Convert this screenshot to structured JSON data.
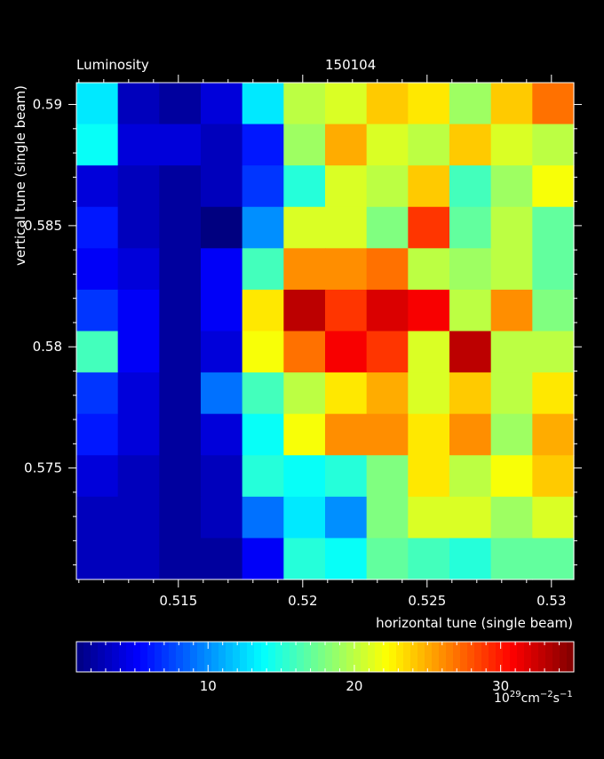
{
  "chart_data": {
    "type": "heatmap",
    "title": "Luminosity",
    "run_number": "150104",
    "xlabel": "horizontal tune (single beam)",
    "ylabel": "vertical tune (single beam)",
    "x_ticks": [
      "0.515",
      "0.52",
      "0.525",
      "0.53"
    ],
    "x_tick_values": [
      0.515,
      0.52,
      0.525,
      0.53
    ],
    "y_ticks": [
      "0.59",
      "0.585",
      "0.58",
      "0.575"
    ],
    "y_tick_values": [
      0.59,
      0.585,
      0.58,
      0.575
    ],
    "xlim": [
      0.5109,
      0.5309
    ],
    "ylim": [
      0.5704,
      0.5909
    ],
    "x_centers": [
      0.512,
      0.5136,
      0.5152,
      0.5168,
      0.5184,
      0.52,
      0.5216,
      0.5232,
      0.5248,
      0.5264,
      0.528,
      0.5296
    ],
    "y_centers": [
      0.5897,
      0.5881,
      0.5864,
      0.5848,
      0.5831,
      0.5815,
      0.5798,
      0.5782,
      0.5765,
      0.5749,
      0.5732,
      0.5716
    ],
    "z": [
      [
        13,
        3,
        2,
        4,
        13,
        20,
        21,
        24,
        23,
        19,
        24,
        27
      ],
      [
        14,
        4,
        4,
        3,
        6,
        19,
        25,
        21,
        20,
        24,
        21,
        20
      ],
      [
        4,
        3,
        2,
        3,
        7,
        15,
        21,
        20,
        24,
        16,
        19,
        22
      ],
      [
        6,
        3,
        2,
        1,
        10,
        21,
        21,
        18,
        29,
        17,
        20,
        17
      ],
      [
        5,
        4,
        2,
        5,
        16,
        26,
        26,
        27,
        20,
        19,
        20,
        17
      ],
      [
        7,
        5,
        2,
        5,
        23,
        33,
        29,
        32,
        31,
        20,
        26,
        18
      ],
      [
        16,
        5,
        2,
        4,
        22,
        27,
        31,
        29,
        21,
        33,
        20,
        20
      ],
      [
        7,
        4,
        2,
        9,
        16,
        20,
        23,
        25,
        21,
        24,
        20,
        23
      ],
      [
        6,
        4,
        2,
        4,
        14,
        22,
        26,
        26,
        23,
        26,
        19,
        25
      ],
      [
        4,
        3,
        2,
        3,
        15,
        14,
        15,
        18,
        23,
        20,
        22,
        24
      ],
      [
        3,
        3,
        2,
        3,
        9,
        13,
        10,
        18,
        21,
        21,
        19,
        21
      ],
      [
        3,
        3,
        2,
        2,
        5,
        15,
        14,
        17,
        16,
        15,
        17,
        17
      ]
    ],
    "colorbar": {
      "range": [
        1,
        35
      ],
      "ticks": [
        "10",
        "20",
        "30"
      ],
      "tick_values": [
        10,
        20,
        30
      ],
      "unit_base": "10",
      "unit_exp": "29",
      "unit_cm": "cm",
      "unit_cm_exp": "−2",
      "unit_s": "s",
      "unit_s_exp": "−1"
    },
    "grid": false,
    "colormap": "jet"
  }
}
